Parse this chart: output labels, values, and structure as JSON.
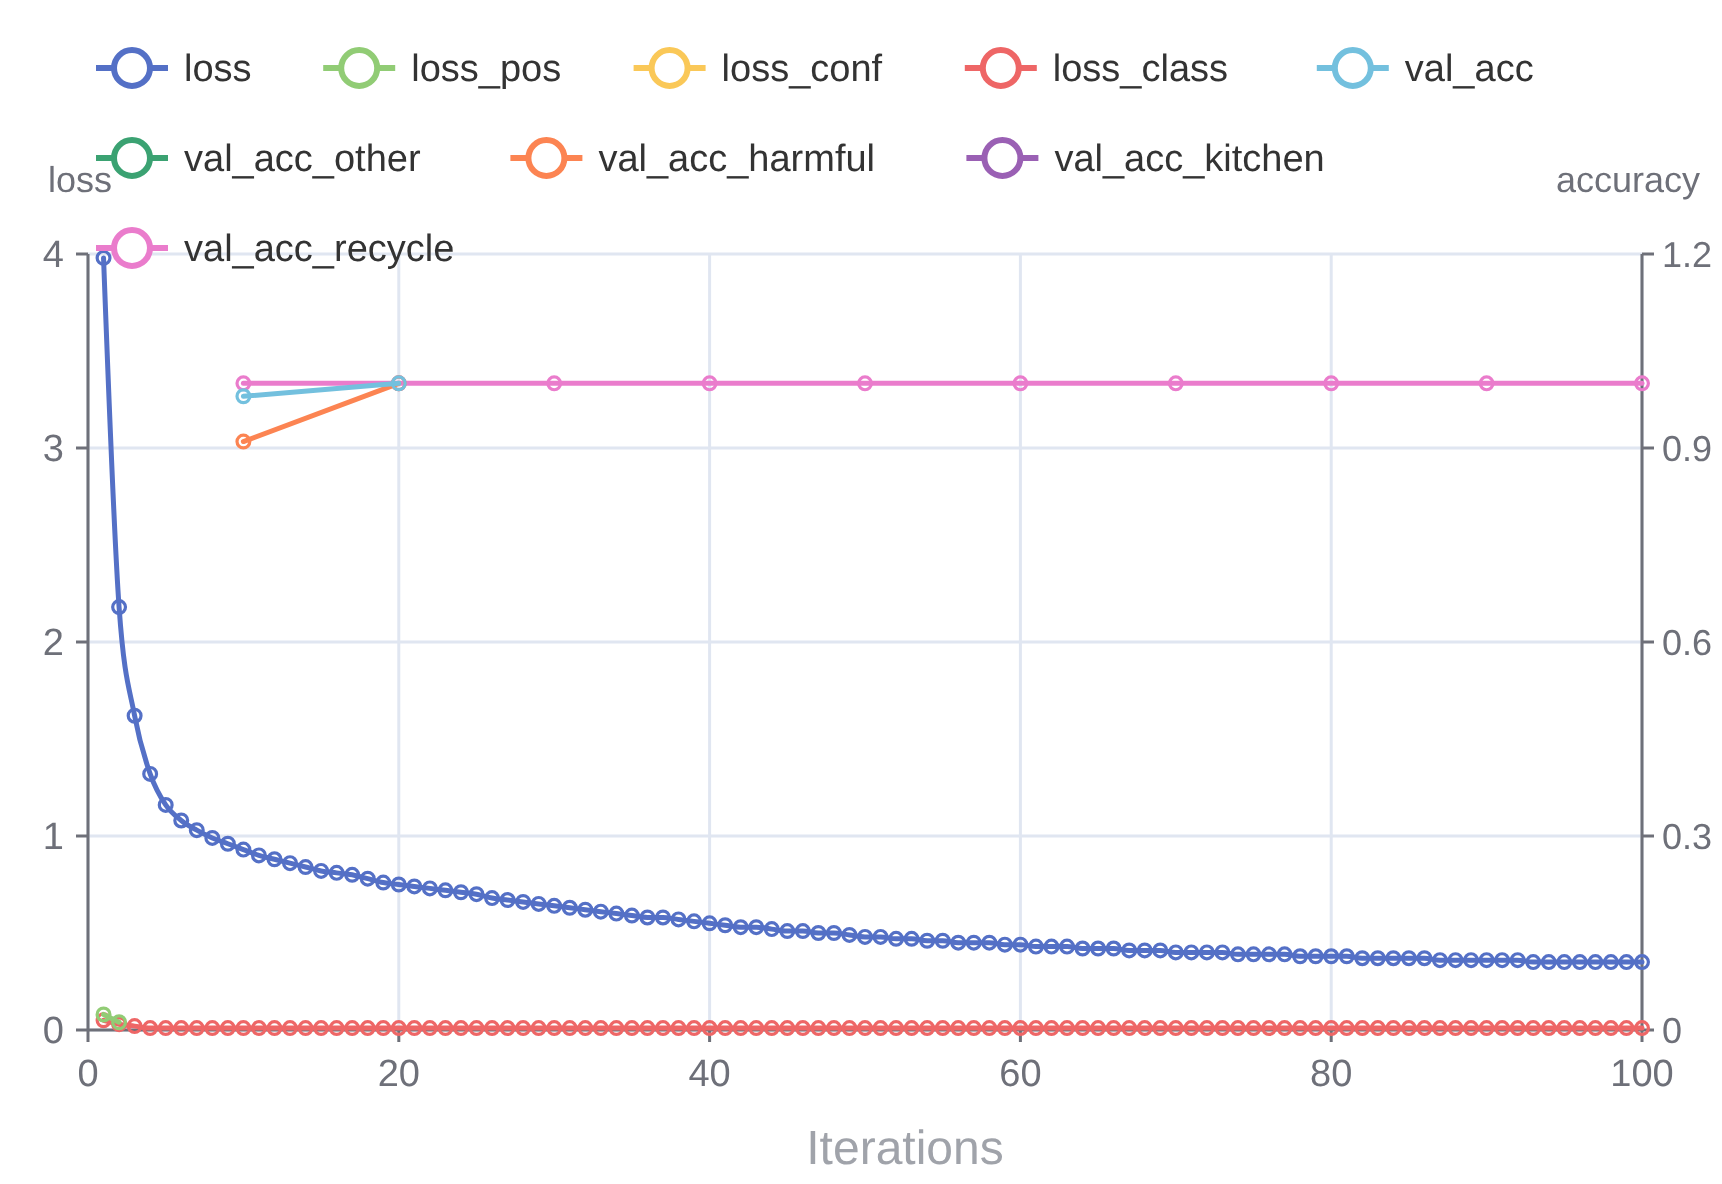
{
  "chart_data": {
    "type": "line",
    "xlabel": "Iterations",
    "ylabel": "loss",
    "y2label": "accuracy",
    "xlim": [
      0,
      100
    ],
    "xticks": [
      0,
      20,
      40,
      60,
      80,
      100
    ],
    "ylim": [
      0,
      4
    ],
    "yticks": [
      0,
      1,
      2,
      3,
      4
    ],
    "y2lim": [
      0,
      1.2
    ],
    "y2ticks": [
      0,
      0.3,
      0.6,
      0.9,
      1.2
    ],
    "grid": true,
    "legend": "top",
    "marker": "circle",
    "series": [
      {
        "name": "loss",
        "color": "#5470c6",
        "x": [
          1,
          2,
          3,
          4,
          5,
          6,
          7,
          8,
          9,
          10,
          11,
          12,
          13,
          14,
          15,
          16,
          17,
          18,
          19,
          20,
          21,
          22,
          23,
          24,
          25,
          26,
          27,
          28,
          29,
          30,
          31,
          32,
          33,
          34,
          35,
          36,
          37,
          38,
          39,
          40,
          41,
          42,
          43,
          44,
          45,
          46,
          47,
          48,
          49,
          50,
          51,
          52,
          53,
          54,
          55,
          56,
          57,
          58,
          59,
          60,
          61,
          62,
          63,
          64,
          65,
          66,
          67,
          68,
          69,
          70,
          71,
          72,
          73,
          74,
          75,
          76,
          77,
          78,
          79,
          80,
          81,
          82,
          83,
          84,
          85,
          86,
          87,
          88,
          89,
          90,
          91,
          92,
          93,
          94,
          95,
          96,
          97,
          98,
          99,
          100
        ],
        "values": [
          3.98,
          2.18,
          1.62,
          1.32,
          1.16,
          1.08,
          1.03,
          0.99,
          0.96,
          0.93,
          0.9,
          0.88,
          0.86,
          0.84,
          0.82,
          0.81,
          0.8,
          0.78,
          0.76,
          0.75,
          0.74,
          0.73,
          0.72,
          0.71,
          0.7,
          0.68,
          0.67,
          0.66,
          0.65,
          0.64,
          0.63,
          0.62,
          0.61,
          0.6,
          0.59,
          0.58,
          0.58,
          0.57,
          0.56,
          0.55,
          0.54,
          0.53,
          0.53,
          0.52,
          0.51,
          0.51,
          0.5,
          0.5,
          0.49,
          0.48,
          0.48,
          0.47,
          0.47,
          0.46,
          0.46,
          0.45,
          0.45,
          0.45,
          0.44,
          0.44,
          0.43,
          0.43,
          0.43,
          0.42,
          0.42,
          0.42,
          0.41,
          0.41,
          0.41,
          0.4,
          0.4,
          0.4,
          0.4,
          0.39,
          0.39,
          0.39,
          0.39,
          0.38,
          0.38,
          0.38,
          0.38,
          0.37,
          0.37,
          0.37,
          0.37,
          0.37,
          0.36,
          0.36,
          0.36,
          0.36,
          0.36,
          0.36,
          0.35,
          0.35,
          0.35,
          0.35,
          0.35,
          0.35,
          0.35,
          0.35
        ]
      },
      {
        "name": "loss_pos",
        "color": "#91cc75",
        "x": [
          1,
          2
        ],
        "values": [
          0.08,
          0.04
        ]
      },
      {
        "name": "loss_conf",
        "color": "#fac858"
      },
      {
        "name": "loss_class",
        "color": "#ee6666",
        "x": [
          1,
          2,
          3,
          4,
          5,
          6,
          7,
          8,
          9,
          10,
          11,
          12,
          13,
          14,
          15,
          16,
          17,
          18,
          19,
          20,
          21,
          22,
          23,
          24,
          25,
          26,
          27,
          28,
          29,
          30,
          31,
          32,
          33,
          34,
          35,
          36,
          37,
          38,
          39,
          40,
          41,
          42,
          43,
          44,
          45,
          46,
          47,
          48,
          49,
          50,
          51,
          52,
          53,
          54,
          55,
          56,
          57,
          58,
          59,
          60,
          61,
          62,
          63,
          64,
          65,
          66,
          67,
          68,
          69,
          70,
          71,
          72,
          73,
          74,
          75,
          76,
          77,
          78,
          79,
          80,
          81,
          82,
          83,
          84,
          85,
          86,
          87,
          88,
          89,
          90,
          91,
          92,
          93,
          94,
          95,
          96,
          97,
          98,
          99,
          100
        ],
        "values": [
          0.05,
          0.03,
          0.02,
          0.01,
          0.01,
          0.01,
          0.01,
          0.01,
          0.01,
          0.01,
          0.01,
          0.01,
          0.01,
          0.01,
          0.01,
          0.01,
          0.01,
          0.01,
          0.01,
          0.01,
          0.01,
          0.01,
          0.01,
          0.01,
          0.01,
          0.01,
          0.01,
          0.01,
          0.01,
          0.01,
          0.01,
          0.01,
          0.01,
          0.01,
          0.01,
          0.01,
          0.01,
          0.01,
          0.01,
          0.01,
          0.01,
          0.01,
          0.01,
          0.01,
          0.01,
          0.01,
          0.01,
          0.01,
          0.01,
          0.01,
          0.01,
          0.01,
          0.01,
          0.01,
          0.01,
          0.01,
          0.01,
          0.01,
          0.01,
          0.01,
          0.01,
          0.01,
          0.01,
          0.01,
          0.01,
          0.01,
          0.01,
          0.01,
          0.01,
          0.01,
          0.01,
          0.01,
          0.01,
          0.01,
          0.01,
          0.01,
          0.01,
          0.01,
          0.01,
          0.01,
          0.01,
          0.01,
          0.01,
          0.01,
          0.01,
          0.01,
          0.01,
          0.01,
          0.01,
          0.01,
          0.01,
          0.01,
          0.01,
          0.01,
          0.01,
          0.01,
          0.01,
          0.01,
          0.01,
          0.01
        ]
      },
      {
        "name": "val_acc",
        "color": "#73c0de",
        "axis": "y2",
        "x": [
          10,
          20
        ],
        "values": [
          0.98,
          1
        ]
      },
      {
        "name": "val_acc_other",
        "color": "#3ba272",
        "axis": "y2"
      },
      {
        "name": "val_acc_harmful",
        "color": "#fc8452",
        "axis": "y2",
        "x": [
          10,
          20
        ],
        "values": [
          0.91,
          1
        ]
      },
      {
        "name": "val_acc_kitchen",
        "color": "#9a60b4",
        "axis": "y2"
      },
      {
        "name": "val_acc_recycle",
        "color": "#ea7ccc",
        "axis": "y2",
        "x": [
          10,
          20,
          30,
          40,
          50,
          60,
          70,
          80,
          90,
          100
        ],
        "values": [
          1,
          1,
          1,
          1,
          1,
          1,
          1,
          1,
          1,
          1
        ]
      }
    ]
  }
}
